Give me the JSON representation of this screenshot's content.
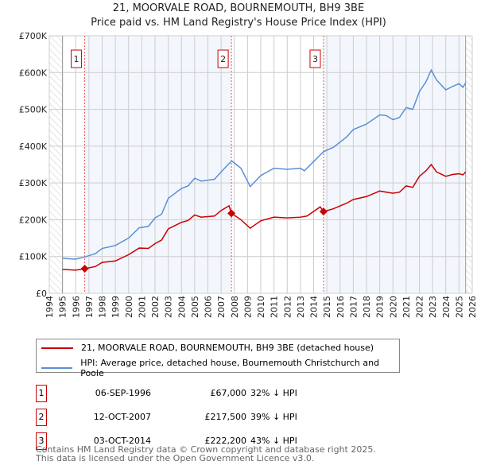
{
  "chart_data": {
    "type": "line",
    "title": "21, MOORVALE ROAD, BOURNEMOUTH, BH9 3BE",
    "subtitle": "Price paid vs. HM Land Registry's House Price Index (HPI)",
    "xlim": [
      1994,
      2026
    ],
    "ylim": [
      0,
      700000
    ],
    "x_ticks": [
      "1994",
      "1995",
      "1996",
      "1997",
      "1998",
      "1999",
      "2000",
      "2001",
      "2002",
      "2003",
      "2004",
      "2005",
      "2006",
      "2007",
      "2008",
      "2009",
      "2010",
      "2011",
      "2012",
      "2013",
      "2014",
      "2015",
      "2016",
      "2017",
      "2018",
      "2019",
      "2020",
      "2021",
      "2022",
      "2023",
      "2024",
      "2025",
      "2026"
    ],
    "y_ticks": [
      {
        "v": 0,
        "label": "£0"
      },
      {
        "v": 100000,
        "label": "£100K"
      },
      {
        "v": 200000,
        "label": "£200K"
      },
      {
        "v": 300000,
        "label": "£300K"
      },
      {
        "v": 400000,
        "label": "£400K"
      },
      {
        "v": 500000,
        "label": "£500K"
      },
      {
        "v": 600000,
        "label": "£600K"
      },
      {
        "v": 700000,
        "label": "£700K"
      }
    ],
    "series": [
      {
        "name": "21, MOORVALE ROAD, BOURNEMOUTH, BH9 3BE (detached house)",
        "color": "#cc0000",
        "x": [
          1995,
          1996,
          1996.7,
          1997.5,
          1998,
          1999,
          2000,
          2000.8,
          2001.5,
          2002,
          2002.5,
          2003,
          2004,
          2004.5,
          2005,
          2005.5,
          2006.5,
          2007,
          2007.6,
          2007.78,
          2008.5,
          2009.2,
          2010,
          2011,
          2012,
          2013,
          2013.5,
          2014.5,
          2014.75,
          2015.5,
          2016.5,
          2017,
          2018,
          2019,
          2020,
          2020.5,
          2021,
          2021.5,
          2022,
          2022.5,
          2022.9,
          2023.3,
          2024,
          2024.5,
          2025,
          2025.3,
          2025.5
        ],
        "y": [
          65,
          63,
          67,
          73,
          84,
          88,
          105,
          123,
          122,
          135,
          145,
          175,
          193,
          198,
          213,
          207,
          210,
          225,
          238,
          217.5,
          200,
          177,
          197,
          207,
          205,
          207,
          210,
          235,
          222,
          230,
          245,
          255,
          263,
          278,
          272,
          275,
          292,
          288,
          318,
          333,
          350,
          330,
          318,
          323,
          325,
          322,
          330
        ]
      },
      {
        "name": "HPI: Average price, detached house, Bournemouth Christchurch and Poole",
        "color": "#5b8fd4",
        "x": [
          1995,
          1996,
          1996.7,
          1997.5,
          1998,
          1999,
          2000,
          2000.8,
          2001.5,
          2002,
          2002.5,
          2003,
          2004,
          2004.5,
          2005,
          2005.5,
          2006.5,
          2007,
          2007.8,
          2008.5,
          2009.2,
          2010,
          2011,
          2012,
          2013,
          2013.3,
          2014,
          2014.75,
          2015.5,
          2016.5,
          2017,
          2018,
          2019,
          2019.5,
          2020,
          2020.5,
          2021,
          2021.5,
          2022,
          2022.5,
          2022.9,
          2023.3,
          2024,
          2024.5,
          2025,
          2025.3,
          2025.5
        ],
        "y": [
          95,
          93,
          99,
          108,
          122,
          130,
          150,
          178,
          182,
          205,
          215,
          258,
          285,
          292,
          313,
          305,
          310,
          330,
          360,
          340,
          290,
          320,
          340,
          337,
          340,
          333,
          358,
          385,
          397,
          425,
          445,
          460,
          485,
          483,
          472,
          478,
          505,
          500,
          548,
          575,
          607,
          580,
          553,
          562,
          570,
          560,
          572
        ]
      }
    ],
    "sales": [
      {
        "id": "1",
        "x": 1996.68,
        "y": 67
      },
      {
        "id": "2",
        "x": 2007.78,
        "y": 217.5
      },
      {
        "id": "3",
        "x": 2014.75,
        "y": 222.2
      }
    ],
    "data_end": 2025.5
  },
  "legend": [
    "21, MOORVALE ROAD, BOURNEMOUTH, BH9 3BE (detached house)",
    "HPI: Average price, detached house, Bournemouth Christchurch and Poole"
  ],
  "transactions": [
    {
      "id": "1",
      "date": "06-SEP-1996",
      "price": "£67,000",
      "hpi": "32% ↓ HPI"
    },
    {
      "id": "2",
      "date": "12-OCT-2007",
      "price": "£217,500",
      "hpi": "39% ↓ HPI"
    },
    {
      "id": "3",
      "date": "03-OCT-2014",
      "price": "£222,200",
      "hpi": "43% ↓ HPI"
    }
  ],
  "footer": [
    "Contains HM Land Registry data © Crown copyright and database right 2025.",
    "This data is licensed under the Open Government Licence v3.0."
  ]
}
